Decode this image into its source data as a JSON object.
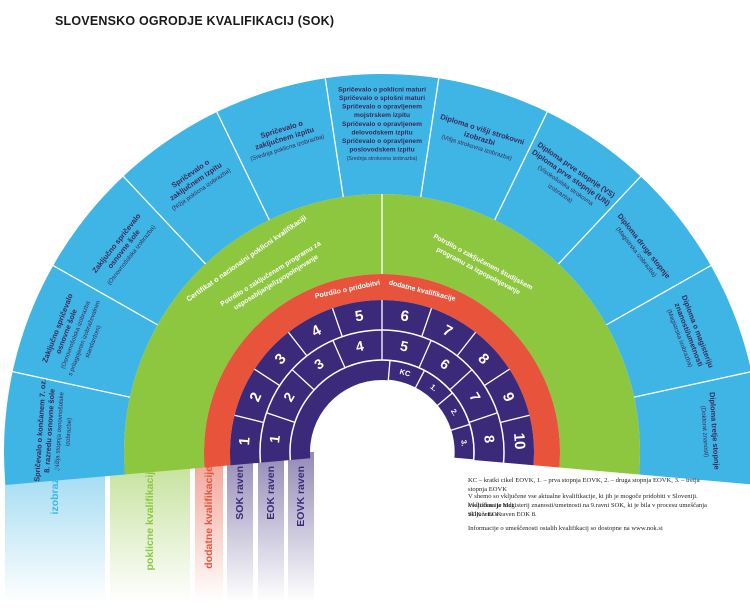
{
  "title": "SLOVENSKO OGRODJE KVALIFIKACIJ (SOK)",
  "colors": {
    "blue": "#3eb5e5",
    "green": "#8dc63f",
    "red": "#e8533c",
    "purple": "#3b2a7a",
    "white": "#ffffff",
    "dark": "#3b2a5a"
  },
  "outer_segments": [
    {
      "lines": [
        "Spričevalo o končanem 7. oz.",
        "8. razredu osnovne šole"
      ],
      "sub": [
        "(Nižja stopnja osnovnošolske",
        "izobrazbe)"
      ]
    },
    {
      "lines": [
        "Zaključno spričevalo",
        "osnovne šole"
      ],
      "sub": [
        "(Osnovnošolska izobrazba",
        "s prilagojenim izobraževalnim",
        "standardom)"
      ]
    },
    {
      "lines": [
        "Zaključno spričevalo",
        "osnovne šole"
      ],
      "sub": [
        "(Osnovnošolska izobrazba)"
      ]
    },
    {
      "lines": [
        "Spričevalo o",
        "zaključnem izpitu"
      ],
      "sub": [
        "(Nižja poklicna izobrazba)"
      ]
    },
    {
      "lines": [
        "Spričevalo o",
        "zaključnem izpitu"
      ],
      "sub": [
        "(Srednja poklicna izobrazba)"
      ]
    },
    {
      "lines": [
        "Spričevalo o poklicni maturi",
        "Spričevalo o splošni maturi",
        "Spričevalo o opravljenem",
        "mojstrskem izpitu",
        "Spričevalo o opravljenem",
        "delovodskem izpitu",
        "Spričevalo o opravljenem",
        "poslovodskem izpitu"
      ],
      "sub": [
        "(Srednja strokovna izobrazba)"
      ]
    },
    {
      "lines": [
        "Diploma o višji strokovni",
        "izobrazbi"
      ],
      "sub": [
        "(Višja strokovna izobrazba)"
      ]
    },
    {
      "lines": [
        "Diploma prve stopnje (VS)",
        "Diploma prve stopnje (UN)"
      ],
      "sub": [
        "(Visokošolska strokovna",
        "izobrazba)"
      ]
    },
    {
      "lines": [
        "Diploma druge stopnje"
      ],
      "sub": [
        "(Magistrska izobrazba)"
      ]
    },
    {
      "lines": [
        "Diploma o magisteriju",
        "znanosti/umetnosti"
      ],
      "sub": [
        "(Magistrska izobrazba)"
      ]
    },
    {
      "lines": [
        "Diploma tretje stopnje"
      ],
      "sub": [
        "(Doktorat znanosti)"
      ]
    }
  ],
  "green_band": {
    "center": "Certifikat o nacionalni poklicni kvalifikaciji",
    "left": [
      "Potrdilo o zaključenem programu za",
      "usposabljanje/izpopolnjevanje"
    ],
    "right": [
      "Potrdilo o zaključenem študijskem",
      "programu za izpopolnjevanje"
    ]
  },
  "red_band": {
    "left": "Potrdilo o pridobitvi",
    "right": "dodatne kvalifikacije"
  },
  "sok_levels": [
    "1",
    "2",
    "3",
    "4",
    "5",
    "6",
    "7",
    "8",
    "9",
    "10"
  ],
  "eok_levels": [
    "1",
    "2",
    "3",
    "4",
    "5",
    "6",
    "7",
    "8"
  ],
  "eovk_levels": [
    "KC",
    "1.",
    "2.",
    "3."
  ],
  "legend_labels": [
    {
      "text": "izobrazbe",
      "color": "#3eb5e5"
    },
    {
      "text": "poklicne kvalifikacije",
      "color": "#8dc63f"
    },
    {
      "text": "dodatne kvalifikacije",
      "color": "#e8533c"
    },
    {
      "text": "SOK raven",
      "color": "#3b2a7a"
    },
    {
      "text": "EOK raven",
      "color": "#3b2a7a"
    },
    {
      "text": "EOVK raven",
      "color": "#3b2a7a"
    }
  ],
  "notes": {
    "line1": "KC – kratki cikel EOVK, 1. – prva stopnja EOVK, 2. – druga stopnja EOVK, 3. – tretja stopnja EOVK",
    "line2a": "V shemo so vključene vse aktualne kvalifikacije, ki jih je mogoče pridobiti v Sloveniji. Vključena je tudi",
    "line2b": "kvalifikacija Magisterij znanosti/umetnosti na 9.ravni SOK, ki je bila v procesu umeščanja SOK v EOK",
    "line2c": "vključena v raven EOK 8.",
    "line3": "Informacije o umeščenosti ostalih kvalifikacij so dostopne na www.nok.si"
  }
}
